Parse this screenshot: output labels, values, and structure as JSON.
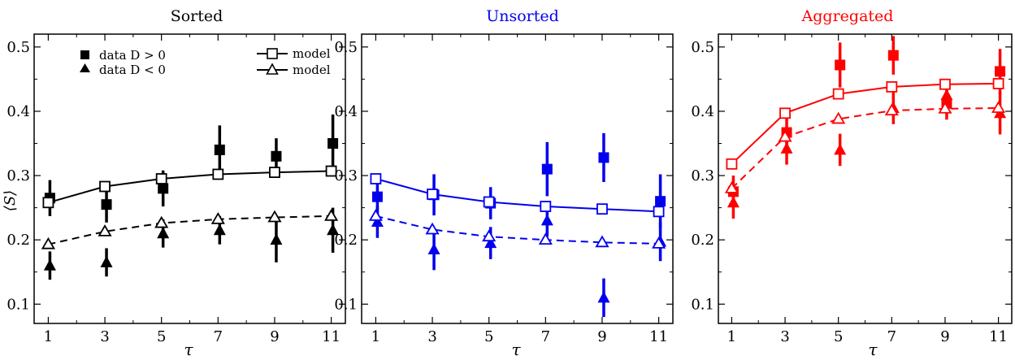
{
  "chart_data": [
    {
      "type": "scatter",
      "title": "Sorted",
      "title_color": "#000000",
      "color": "#000000",
      "ylabel": "⟨S⟩",
      "xlabel": "τ",
      "xlim": [
        0.5,
        11.5
      ],
      "ylim": [
        0.07,
        0.52
      ],
      "xticks": [
        1,
        3,
        5,
        7,
        9,
        11
      ],
      "yticks": [
        0.1,
        0.2,
        0.3,
        0.4,
        0.5
      ],
      "legend": {
        "position": "top",
        "entries": [
          "data D > 0",
          "data D < 0",
          "model",
          "model"
        ]
      },
      "series": [
        {
          "name": "data D > 0",
          "marker": "filled-square",
          "x": [
            1,
            3,
            5,
            7,
            9,
            11
          ],
          "y": [
            0.265,
            0.255,
            0.28,
            0.34,
            0.33,
            0.35
          ],
          "err": [
            0.028,
            0.028,
            0.028,
            0.038,
            0.028,
            0.045
          ]
        },
        {
          "name": "data D < 0",
          "marker": "filled-triangle",
          "x": [
            1,
            3,
            5,
            7,
            9,
            11
          ],
          "y": [
            0.16,
            0.165,
            0.21,
            0.215,
            0.2,
            0.215
          ],
          "err": [
            0.022,
            0.022,
            0.022,
            0.022,
            0.035,
            0.035
          ]
        },
        {
          "name": "model",
          "marker": "open-square",
          "line": "solid",
          "x": [
            1,
            3,
            5,
            7,
            9,
            11
          ],
          "y": [
            0.258,
            0.283,
            0.295,
            0.302,
            0.305,
            0.307
          ]
        },
        {
          "name": "model",
          "marker": "open-triangle",
          "line": "dashed",
          "x": [
            1,
            3,
            5,
            7,
            9,
            11
          ],
          "y": [
            0.193,
            0.213,
            0.226,
            0.232,
            0.235,
            0.237
          ]
        }
      ]
    },
    {
      "type": "scatter",
      "title": "Unsorted",
      "title_color": "#0000ee",
      "color": "#0000ee",
      "xlabel": "τ",
      "xlim": [
        0.5,
        11.5
      ],
      "ylim": [
        0.07,
        0.52
      ],
      "xticks": [
        1,
        3,
        5,
        7,
        9,
        11
      ],
      "yticks": [
        0.1,
        0.2,
        0.3,
        0.4,
        0.5
      ],
      "series": [
        {
          "marker": "filled-square",
          "x": [
            1,
            3,
            5,
            7,
            9,
            11
          ],
          "y": [
            0.267,
            0.27,
            0.257,
            0.31,
            0.328,
            0.26
          ],
          "err": [
            0.028,
            0.032,
            0.025,
            0.042,
            0.038,
            0.042
          ]
        },
        {
          "marker": "filled-triangle",
          "x": [
            1,
            3,
            5,
            7,
            9,
            11
          ],
          "y": [
            0.228,
            0.185,
            0.195,
            0.23,
            0.11,
            0.197
          ],
          "err": [
            0.025,
            0.032,
            0.025,
            0.025,
            0.03,
            0.03
          ]
        },
        {
          "marker": "open-square",
          "line": "solid",
          "x": [
            1,
            3,
            5,
            7,
            9,
            11
          ],
          "y": [
            0.295,
            0.271,
            0.259,
            0.252,
            0.248,
            0.244
          ]
        },
        {
          "marker": "open-triangle",
          "line": "dashed",
          "x": [
            1,
            3,
            5,
            7,
            9,
            11
          ],
          "y": [
            0.237,
            0.216,
            0.205,
            0.2,
            0.196,
            0.194
          ]
        }
      ]
    },
    {
      "type": "scatter",
      "title": "Aggregated",
      "title_color": "#ff0000",
      "color": "#ff0000",
      "xlabel": "τ",
      "xlim": [
        0.5,
        11.5
      ],
      "ylim": [
        0.07,
        0.52
      ],
      "xticks": [
        1,
        3,
        5,
        7,
        9,
        11
      ],
      "yticks": [
        0.1,
        0.2,
        0.3,
        0.4,
        0.5
      ],
      "series": [
        {
          "marker": "filled-square",
          "x": [
            1,
            3,
            5,
            7,
            9,
            11
          ],
          "y": [
            0.275,
            0.367,
            0.472,
            0.487,
            0.412,
            0.462
          ],
          "err": [
            0.025,
            0.025,
            0.035,
            0.03,
            0.025,
            0.035
          ]
        },
        {
          "marker": "filled-triangle",
          "x": [
            1,
            3,
            5,
            7,
            9,
            11
          ],
          "y": [
            0.258,
            0.342,
            0.34,
            0.405,
            0.425,
            0.397
          ],
          "err": [
            0.025,
            0.025,
            0.025,
            0.025,
            0.025,
            0.033
          ]
        },
        {
          "marker": "open-square",
          "line": "solid",
          "x": [
            1,
            3,
            5,
            7,
            9,
            11
          ],
          "y": [
            0.318,
            0.397,
            0.427,
            0.438,
            0.442,
            0.443
          ]
        },
        {
          "marker": "open-triangle",
          "line": "dashed",
          "x": [
            1,
            3,
            5,
            7,
            9,
            11
          ],
          "y": [
            0.28,
            0.36,
            0.388,
            0.401,
            0.404,
            0.405
          ]
        }
      ]
    }
  ]
}
